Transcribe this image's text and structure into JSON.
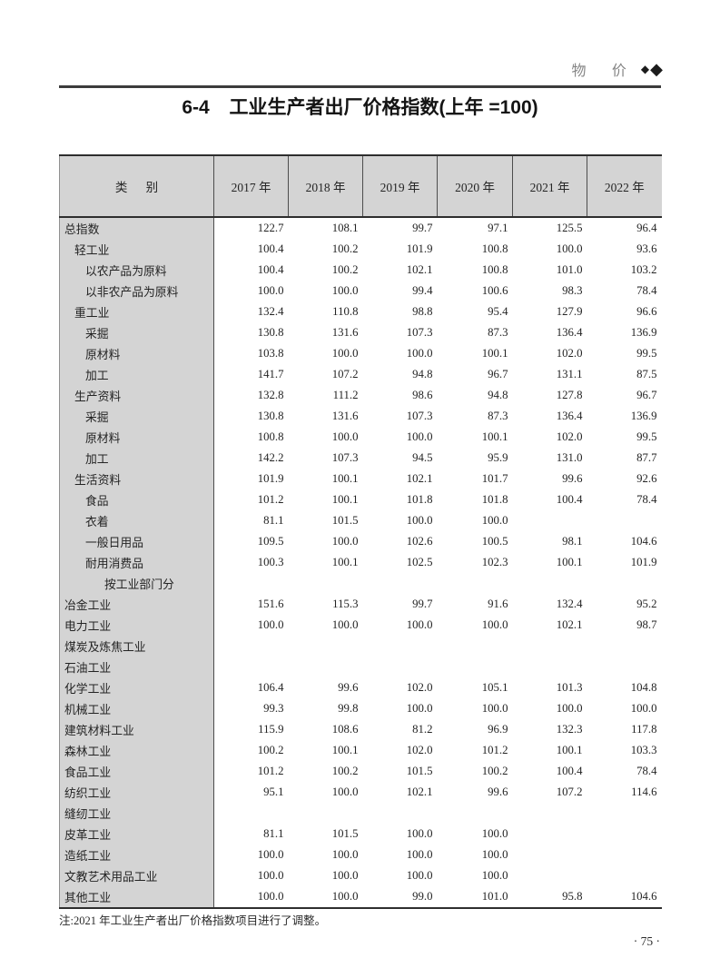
{
  "masthead": {
    "section_label": "物 价",
    "diamond_small": "◆",
    "diamond_large": "◆"
  },
  "title": {
    "number": "6-4",
    "text": "工业生产者出厂价格指数(上年 =100)"
  },
  "colors": {
    "table_fill": "#d4d4d4",
    "rule": "#3c3c3c"
  },
  "table": {
    "category_header": "类      别",
    "year_headers": [
      "2017 年",
      "2018 年",
      "2019 年",
      "2020 年",
      "2021 年",
      "2022 年"
    ],
    "rows": [
      {
        "label": "总指数",
        "indent": 0,
        "values": [
          "122.7",
          "108.1",
          "99.7",
          "97.1",
          "125.5",
          "96.4"
        ]
      },
      {
        "label": "轻工业",
        "indent": 1,
        "values": [
          "100.4",
          "100.2",
          "101.9",
          "100.8",
          "100.0",
          "93.6"
        ]
      },
      {
        "label": "以农产品为原料",
        "indent": 2,
        "values": [
          "100.4",
          "100.2",
          "102.1",
          "100.8",
          "101.0",
          "103.2"
        ]
      },
      {
        "label": "以非农产品为原料",
        "indent": 2,
        "values": [
          "100.0",
          "100.0",
          "99.4",
          "100.6",
          "98.3",
          "78.4"
        ]
      },
      {
        "label": "重工业",
        "indent": 1,
        "values": [
          "132.4",
          "110.8",
          "98.8",
          "95.4",
          "127.9",
          "96.6"
        ]
      },
      {
        "label": "采掘",
        "indent": 2,
        "values": [
          "130.8",
          "131.6",
          "107.3",
          "87.3",
          "136.4",
          "136.9"
        ]
      },
      {
        "label": "原材料",
        "indent": 2,
        "values": [
          "103.8",
          "100.0",
          "100.0",
          "100.1",
          "102.0",
          "99.5"
        ]
      },
      {
        "label": "加工",
        "indent": 2,
        "values": [
          "141.7",
          "107.2",
          "94.8",
          "96.7",
          "131.1",
          "87.5"
        ]
      },
      {
        "label": "生产资料",
        "indent": 1,
        "values": [
          "132.8",
          "111.2",
          "98.6",
          "94.8",
          "127.8",
          "96.7"
        ]
      },
      {
        "label": "采掘",
        "indent": 2,
        "values": [
          "130.8",
          "131.6",
          "107.3",
          "87.3",
          "136.4",
          "136.9"
        ]
      },
      {
        "label": "原材料",
        "indent": 2,
        "values": [
          "100.8",
          "100.0",
          "100.0",
          "100.1",
          "102.0",
          "99.5"
        ]
      },
      {
        "label": "加工",
        "indent": 2,
        "values": [
          "142.2",
          "107.3",
          "94.5",
          "95.9",
          "131.0",
          "87.7"
        ]
      },
      {
        "label": "生活资料",
        "indent": 1,
        "values": [
          "101.9",
          "100.1",
          "102.1",
          "101.7",
          "99.6",
          "92.6"
        ]
      },
      {
        "label": "食品",
        "indent": 2,
        "values": [
          "101.2",
          "100.1",
          "101.8",
          "101.8",
          "100.4",
          "78.4"
        ]
      },
      {
        "label": "衣着",
        "indent": 2,
        "values": [
          "81.1",
          "101.5",
          "100.0",
          "100.0",
          "",
          ""
        ]
      },
      {
        "label": "一般日用品",
        "indent": 2,
        "values": [
          "109.5",
          "100.0",
          "102.6",
          "100.5",
          "98.1",
          "104.6"
        ]
      },
      {
        "label": "耐用消费品",
        "indent": 2,
        "values": [
          "100.3",
          "100.1",
          "102.5",
          "102.3",
          "100.1",
          "101.9"
        ]
      },
      {
        "label": "按工业部门分",
        "indent": 3,
        "values": [
          "",
          "",
          "",
          "",
          "",
          ""
        ]
      },
      {
        "label": "冶金工业",
        "indent": 0,
        "values": [
          "151.6",
          "115.3",
          "99.7",
          "91.6",
          "132.4",
          "95.2"
        ]
      },
      {
        "label": "电力工业",
        "indent": 0,
        "values": [
          "100.0",
          "100.0",
          "100.0",
          "100.0",
          "102.1",
          "98.7"
        ]
      },
      {
        "label": "煤炭及炼焦工业",
        "indent": 0,
        "values": [
          "",
          "",
          "",
          "",
          "",
          ""
        ]
      },
      {
        "label": "石油工业",
        "indent": 0,
        "values": [
          "",
          "",
          "",
          "",
          "",
          ""
        ]
      },
      {
        "label": "化学工业",
        "indent": 0,
        "values": [
          "106.4",
          "99.6",
          "102.0",
          "105.1",
          "101.3",
          "104.8"
        ]
      },
      {
        "label": "机械工业",
        "indent": 0,
        "values": [
          "99.3",
          "99.8",
          "100.0",
          "100.0",
          "100.0",
          "100.0"
        ]
      },
      {
        "label": "建筑材料工业",
        "indent": 0,
        "values": [
          "115.9",
          "108.6",
          "81.2",
          "96.9",
          "132.3",
          "117.8"
        ]
      },
      {
        "label": "森林工业",
        "indent": 0,
        "values": [
          "100.2",
          "100.1",
          "102.0",
          "101.2",
          "100.1",
          "103.3"
        ]
      },
      {
        "label": "食品工业",
        "indent": 0,
        "values": [
          "101.2",
          "100.2",
          "101.5",
          "100.2",
          "100.4",
          "78.4"
        ]
      },
      {
        "label": "纺织工业",
        "indent": 0,
        "values": [
          "95.1",
          "100.0",
          "102.1",
          "99.6",
          "107.2",
          "114.6"
        ]
      },
      {
        "label": "缝纫工业",
        "indent": 0,
        "values": [
          "",
          "",
          "",
          "",
          "",
          ""
        ]
      },
      {
        "label": "皮革工业",
        "indent": 0,
        "values": [
          "81.1",
          "101.5",
          "100.0",
          "100.0",
          "",
          ""
        ]
      },
      {
        "label": "造纸工业",
        "indent": 0,
        "values": [
          "100.0",
          "100.0",
          "100.0",
          "100.0",
          "",
          ""
        ]
      },
      {
        "label": "文教艺术用品工业",
        "indent": 0,
        "values": [
          "100.0",
          "100.0",
          "100.0",
          "100.0",
          "",
          ""
        ]
      },
      {
        "label": "其他工业",
        "indent": 0,
        "values": [
          "100.0",
          "100.0",
          "99.0",
          "101.0",
          "95.8",
          "104.6"
        ]
      }
    ]
  },
  "footnote": "注:2021 年工业生产者出厂价格指数项目进行了调整。",
  "page_number": "· 75 ·"
}
